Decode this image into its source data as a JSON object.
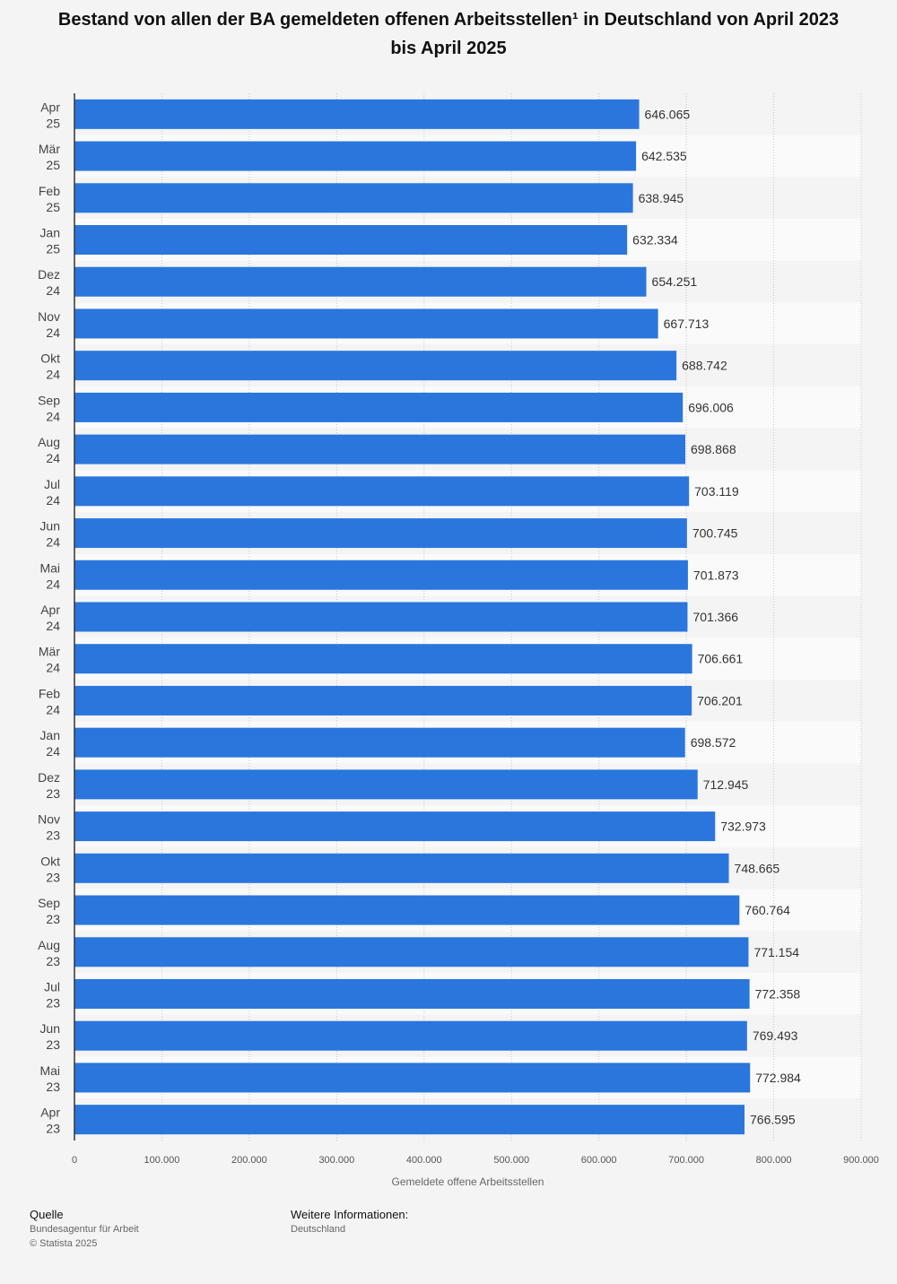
{
  "chart_data": {
    "type": "bar",
    "orientation": "horizontal",
    "title": "Bestand von allen der BA gemeldeten offenen Arbeitsstellen¹ in Deutschland von April 2023 bis April 2025",
    "xlabel": "Gemeldete offene Arbeitsstellen",
    "ylabel": "",
    "xlim": [
      0,
      900000
    ],
    "xticks": [
      "0",
      "100.000",
      "200.000",
      "300.000",
      "400.000",
      "500.000",
      "600.000",
      "700.000",
      "800.000",
      "900.000"
    ],
    "grid": true,
    "bar_color": "#2a76dd",
    "categories": [
      [
        "Apr",
        "25"
      ],
      [
        "Mär",
        "25"
      ],
      [
        "Feb",
        "25"
      ],
      [
        "Jan",
        "25"
      ],
      [
        "Dez",
        "24"
      ],
      [
        "Nov",
        "24"
      ],
      [
        "Okt",
        "24"
      ],
      [
        "Sep",
        "24"
      ],
      [
        "Aug",
        "24"
      ],
      [
        "Jul",
        "24"
      ],
      [
        "Jun",
        "24"
      ],
      [
        "Mai",
        "24"
      ],
      [
        "Apr",
        "24"
      ],
      [
        "Mär",
        "24"
      ],
      [
        "Feb",
        "24"
      ],
      [
        "Jan",
        "24"
      ],
      [
        "Dez",
        "23"
      ],
      [
        "Nov",
        "23"
      ],
      [
        "Okt",
        "23"
      ],
      [
        "Sep",
        "23"
      ],
      [
        "Aug",
        "23"
      ],
      [
        "Jul",
        "23"
      ],
      [
        "Jun",
        "23"
      ],
      [
        "Mai",
        "23"
      ],
      [
        "Apr",
        "23"
      ]
    ],
    "values": [
      646065,
      642535,
      638945,
      632334,
      654251,
      667713,
      688742,
      696006,
      698868,
      703119,
      700745,
      701873,
      701366,
      706661,
      706201,
      698572,
      712945,
      732973,
      748665,
      760764,
      771154,
      772358,
      769493,
      772984,
      766595
    ],
    "value_labels": [
      "646.065",
      "642.535",
      "638.945",
      "632.334",
      "654.251",
      "667.713",
      "688.742",
      "696.006",
      "698.868",
      "703.119",
      "700.745",
      "701.873",
      "701.366",
      "706.661",
      "706.201",
      "698.572",
      "712.945",
      "732.973",
      "748.665",
      "760.764",
      "771.154",
      "772.358",
      "769.493",
      "772.984",
      "766.595"
    ]
  },
  "footer": {
    "source_heading": "Quelle",
    "source_name": "Bundesagentur für Arbeit",
    "copyright": "© Statista 2025",
    "info_heading": "Weitere Informationen:",
    "info_value": "Deutschland"
  }
}
